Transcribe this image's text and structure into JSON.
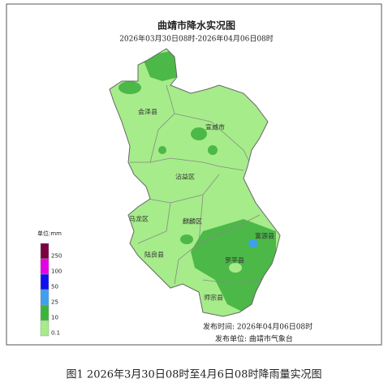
{
  "header": {
    "title": "曲靖市降水实况图",
    "subtitle": "2026年03月30日08时-2026年04月06日08时"
  },
  "regions": [
    "会泽县",
    "宣威市",
    "沾益区",
    "马龙区",
    "麒麟区",
    "富源县",
    "陆良县",
    "罗平县",
    "师宗县"
  ],
  "legend": {
    "title": "单位:mm",
    "items": [
      {
        "label": "250",
        "color": "#7a0040"
      },
      {
        "label": "100",
        "color": "#e600e6"
      },
      {
        "label": "50",
        "color": "#1010ee"
      },
      {
        "label": "25",
        "color": "#3fa0f0"
      },
      {
        "label": "10",
        "color": "#3cb43c"
      },
      {
        "label": "0.1",
        "color": "#a6ec8a"
      }
    ]
  },
  "footer": {
    "time": "发布时间: 2026年04月06日08时",
    "unit": "发布单位: 曲靖市气象台"
  },
  "caption": "图1 2026年3月30日08时至4月6日08时降雨量实况图"
}
